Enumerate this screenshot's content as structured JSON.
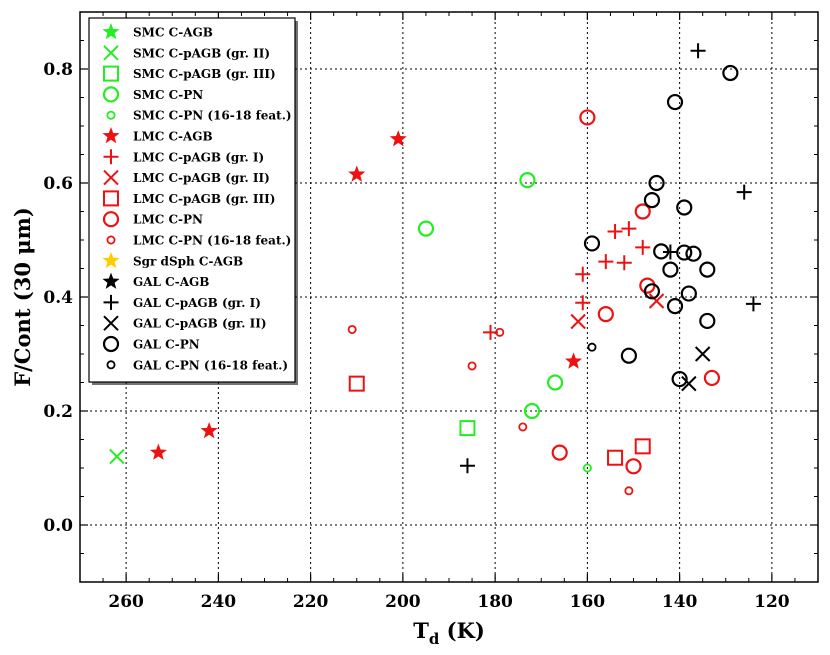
{
  "chart_data": {
    "type": "scatter",
    "xlabel_main": "T",
    "xlabel_sub": "d",
    "xlabel_unit": " (K)",
    "ylabel": "F/Cont (30 μm)",
    "xlim": [
      270,
      110
    ],
    "ylim": [
      -0.1,
      0.9
    ],
    "x_ticks": [
      260,
      240,
      220,
      200,
      180,
      160,
      140,
      120
    ],
    "y_ticks": [
      0.0,
      0.2,
      0.4,
      0.6,
      0.8
    ],
    "y_tick_labels": [
      "0.0",
      "0.2",
      "0.4",
      "0.6",
      "0.8"
    ],
    "grid": true,
    "legend_position": "top-left",
    "colors": {
      "green": "#22ee22",
      "red": "#ee1111",
      "yellow": "#ffcc00",
      "black": "#000000"
    },
    "series": [
      {
        "name": "SMC C-AGB",
        "marker": "star",
        "color": "green",
        "size": "large",
        "points": []
      },
      {
        "name": "SMC C-pAGB (gr. II)",
        "marker": "x",
        "color": "green",
        "size": "large",
        "points": [
          [
            262,
            0.12
          ]
        ]
      },
      {
        "name": "SMC C-pAGB (gr. III)",
        "marker": "square",
        "color": "green",
        "size": "large",
        "points": [
          [
            186,
            0.17
          ]
        ]
      },
      {
        "name": "SMC C-PN",
        "marker": "circle",
        "color": "green",
        "size": "large",
        "points": [
          [
            195,
            0.52
          ],
          [
            173,
            0.605
          ],
          [
            172,
            0.2
          ],
          [
            167,
            0.25
          ]
        ]
      },
      {
        "name": "SMC C-PN (16-18 feat.)",
        "marker": "circle",
        "color": "green",
        "size": "small",
        "points": [
          [
            160,
            0.1
          ]
        ]
      },
      {
        "name": "LMC C-AGB",
        "marker": "star",
        "color": "red",
        "size": "large",
        "points": [
          [
            201,
            0.677
          ],
          [
            210,
            0.615
          ],
          [
            242,
            0.165
          ],
          [
            253,
            0.127
          ],
          [
            163,
            0.287
          ]
        ]
      },
      {
        "name": "LMC C-pAGB (gr. I)",
        "marker": "plus",
        "color": "red",
        "size": "large",
        "points": [
          [
            181,
            0.338
          ],
          [
            161,
            0.44
          ],
          [
            161,
            0.39
          ],
          [
            156,
            0.462
          ],
          [
            154,
            0.515
          ],
          [
            151,
            0.52
          ],
          [
            152,
            0.46
          ],
          [
            148,
            0.487
          ]
        ]
      },
      {
        "name": "LMC C-pAGB (gr. II)",
        "marker": "x",
        "color": "red",
        "size": "large",
        "points": [
          [
            162,
            0.357
          ],
          [
            145,
            0.393
          ]
        ]
      },
      {
        "name": "LMC C-pAGB (gr. III)",
        "marker": "square",
        "color": "red",
        "size": "large",
        "points": [
          [
            210,
            0.248
          ],
          [
            154,
            0.118
          ],
          [
            148,
            0.138
          ]
        ]
      },
      {
        "name": "LMC C-PN",
        "marker": "circle",
        "color": "red",
        "size": "large",
        "points": [
          [
            160,
            0.715
          ],
          [
            148,
            0.55
          ],
          [
            147,
            0.42
          ],
          [
            156,
            0.37
          ],
          [
            166,
            0.127
          ],
          [
            150,
            0.103
          ],
          [
            133,
            0.258
          ]
        ]
      },
      {
        "name": "LMC C-PN (16-18 feat.)",
        "marker": "circle",
        "color": "red",
        "size": "small",
        "points": [
          [
            211,
            0.343
          ],
          [
            185,
            0.279
          ],
          [
            179,
            0.338
          ],
          [
            174,
            0.172
          ],
          [
            151,
            0.06
          ]
        ]
      },
      {
        "name": "Sgr dSph C-AGB",
        "marker": "star",
        "color": "yellow",
        "size": "large",
        "points": []
      },
      {
        "name": "GAL C-AGB",
        "marker": "star",
        "color": "black",
        "size": "large",
        "points": []
      },
      {
        "name": "GAL C-pAGB (gr. I)",
        "marker": "plus",
        "color": "black",
        "size": "large",
        "points": [
          [
            136,
            0.832
          ],
          [
            126,
            0.584
          ],
          [
            124,
            0.388
          ],
          [
            186,
            0.104
          ],
          [
            142,
            0.479
          ]
        ]
      },
      {
        "name": "GAL C-pAGB (gr. II)",
        "marker": "x",
        "color": "black",
        "size": "large",
        "points": [
          [
            135,
            0.3
          ],
          [
            138,
            0.248
          ]
        ]
      },
      {
        "name": "GAL C-PN",
        "marker": "circle",
        "color": "black",
        "size": "large",
        "points": [
          [
            129,
            0.793
          ],
          [
            141,
            0.742
          ],
          [
            145,
            0.6
          ],
          [
            146,
            0.57
          ],
          [
            139,
            0.557
          ],
          [
            159,
            0.494
          ],
          [
            144,
            0.48
          ],
          [
            139,
            0.478
          ],
          [
            137,
            0.476
          ],
          [
            134,
            0.448
          ],
          [
            142,
            0.448
          ],
          [
            146,
            0.41
          ],
          [
            138,
            0.406
          ],
          [
            141,
            0.384
          ],
          [
            134,
            0.358
          ],
          [
            151,
            0.297
          ],
          [
            140,
            0.256
          ]
        ]
      },
      {
        "name": "GAL C-PN (16-18 feat.)",
        "marker": "circle",
        "color": "black",
        "size": "small",
        "points": [
          [
            159,
            0.312
          ]
        ]
      }
    ]
  }
}
